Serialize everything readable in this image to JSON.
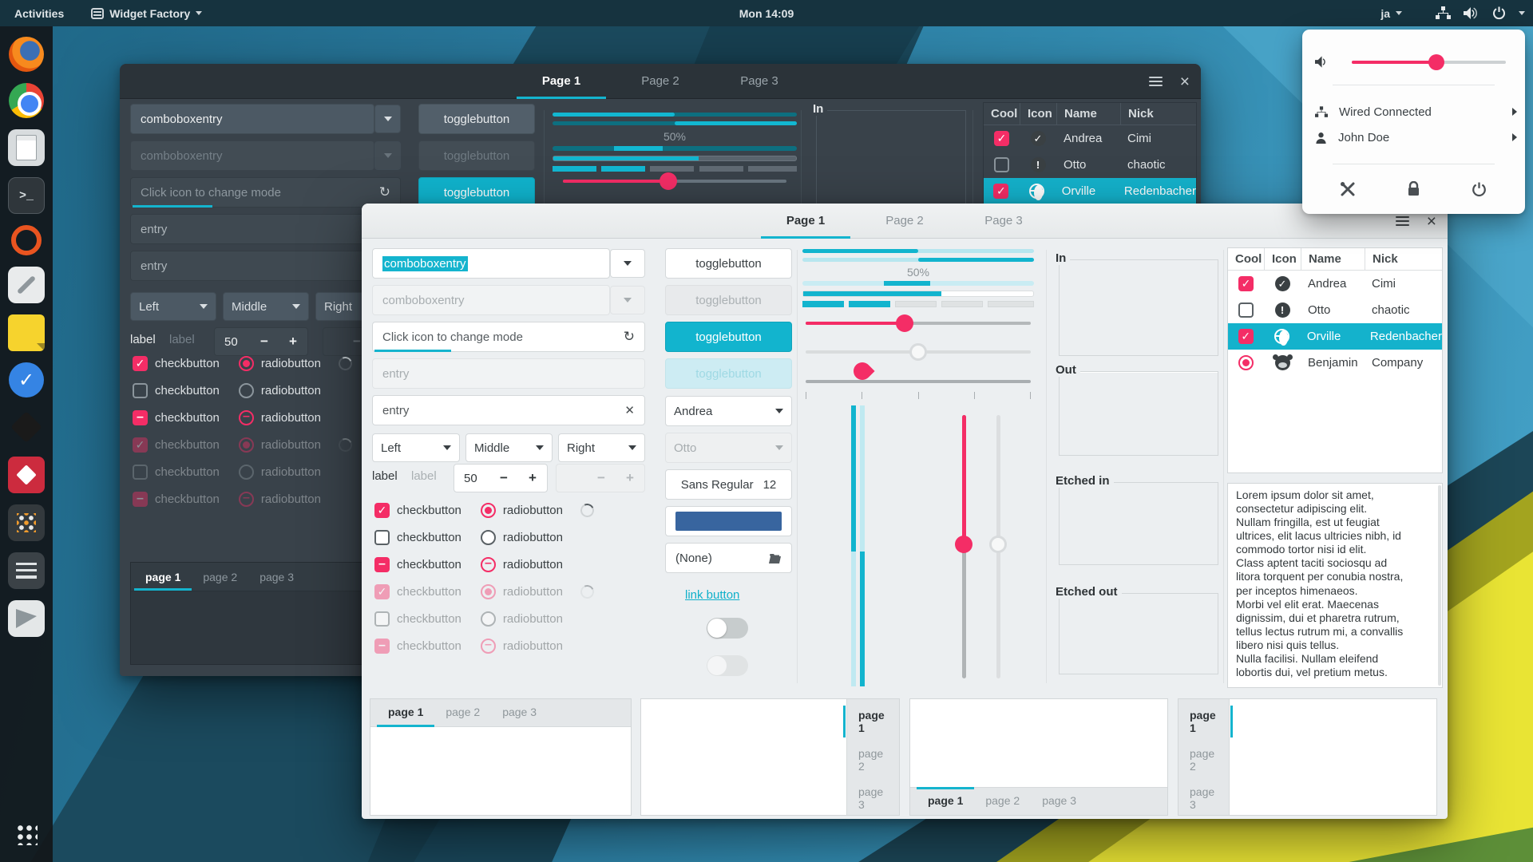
{
  "topbar": {
    "activities": "Activities",
    "app_name": "Widget Factory",
    "clock": "Mon 14:09",
    "keyboard": "ja"
  },
  "system_menu": {
    "volume_percent": 55,
    "wired": "Wired Connected",
    "user": "John Doe"
  },
  "colors": {
    "accent_cyan": "#14b4ce",
    "accent_pink": "#f42d66",
    "selected_row": "#14b2cc",
    "color_button_swatch": "#38659f"
  },
  "factory": {
    "window_tabs": [
      "Page 1",
      "Page 2",
      "Page 3"
    ],
    "combobox_text": "comboboxentry",
    "mode_entry_placeholder": "Click icon to change mode",
    "entry_placeholder": "entry",
    "align_options": [
      "Left",
      "Middle",
      "Right"
    ],
    "label": "label",
    "spin_value": "50",
    "minus": "−",
    "plus": "+",
    "togglebutton": "togglebutton",
    "checkbutton": "checkbutton",
    "radiobutton": "radiobutton",
    "progress_label": "50%",
    "name_combo": "Andrea",
    "name_combo_disabled": "Otto",
    "font_name": "Sans Regular",
    "font_size": "12",
    "file_none": "(None)",
    "link": "link button",
    "frames": [
      "In",
      "Out",
      "Etched in",
      "Etched out"
    ],
    "tree_headers": [
      "Cool",
      "Icon",
      "Name",
      "Nick"
    ],
    "tree_rows": [
      {
        "name": "Andrea",
        "nick": "Cimi"
      },
      {
        "name": "Otto",
        "nick": "chaotic"
      },
      {
        "name": "Orville",
        "nick": "Redenbacher"
      },
      {
        "name": "Benjamin",
        "nick": "Company"
      }
    ],
    "page_tabs": [
      "page 1",
      "page 2",
      "page 3"
    ],
    "lorem": "Lorem ipsum dolor sit amet,\nconsectetur adipiscing elit.\nNullam fringilla, est ut feugiat\nultrices, elit lacus ultricies nibh, id\ncommodo tortor nisi id elit.\nClass aptent taciti sociosqu ad\nlitora torquent per conubia nostra,\nper inceptos himenaeos.\nMorbi vel elit erat. Maecenas\ndignissim, dui et pharetra rutrum,\ntellus lectus rutrum mi, a convallis\nlibero nisi quis tellus.\nNulla facilisi. Nullam eleifend\nlobortis dui, vel pretium metus."
  },
  "dock_apps": [
    "firefox",
    "chrome",
    "files",
    "terminal",
    "timer",
    "text-editor",
    "sticky-notes",
    "todo",
    "inkscape",
    "package",
    "app-dots",
    "tweaks",
    "screenshot",
    "app-grid"
  ]
}
